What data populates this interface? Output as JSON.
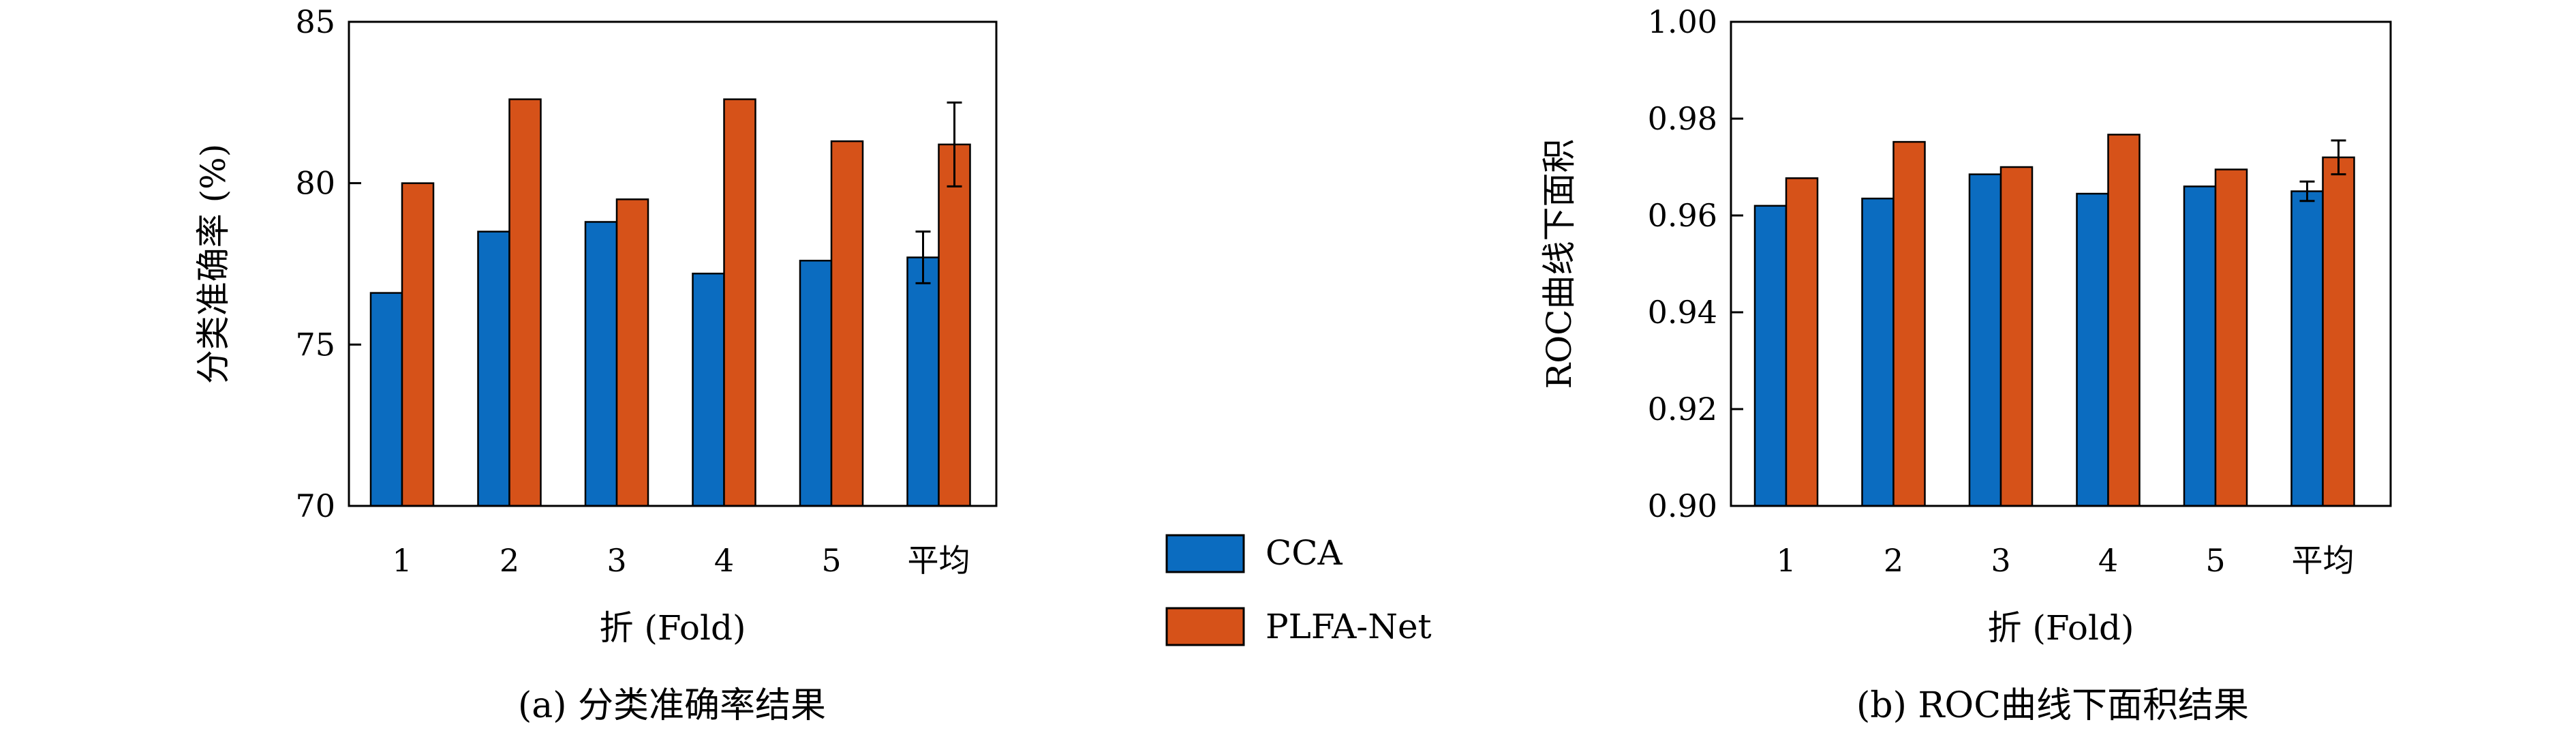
{
  "colors": {
    "cca": "#0b6cc0",
    "plfa": "#d65219",
    "axis": "#000000"
  },
  "legend": [
    {
      "name": "CCA",
      "color_key": "cca"
    },
    {
      "name": "PLFA-Net",
      "color_key": "plfa"
    }
  ],
  "chart_data": [
    {
      "type": "bar",
      "caption": "(a) 分类准确率结果",
      "xlabel": "折 (Fold)",
      "ylabel": "分类准确率 (%)",
      "categories": [
        "1",
        "2",
        "3",
        "4",
        "5",
        "平均"
      ],
      "ylim": [
        70,
        85
      ],
      "yticks": [
        "70",
        "75",
        "80",
        "85"
      ],
      "yticks_values": [
        70,
        75,
        80,
        85
      ],
      "series": [
        {
          "name": "CCA",
          "values": [
            76.6,
            78.5,
            78.8,
            77.2,
            77.6,
            77.7
          ],
          "error": [
            null,
            null,
            null,
            null,
            null,
            0.8
          ]
        },
        {
          "name": "PLFA-Net",
          "values": [
            80.0,
            82.6,
            79.5,
            82.6,
            81.3,
            81.2
          ],
          "error": [
            null,
            null,
            null,
            null,
            null,
            1.3
          ]
        }
      ],
      "grid": false
    },
    {
      "type": "bar",
      "caption": "(b) ROC曲线下面积结果",
      "xlabel": "折 (Fold)",
      "ylabel": "ROC曲线下面积",
      "categories": [
        "1",
        "2",
        "3",
        "4",
        "5",
        "平均"
      ],
      "ylim": [
        0.9,
        1.0
      ],
      "yticks": [
        "0.90",
        "0.92",
        "0.94",
        "0.96",
        "0.98",
        "1.00"
      ],
      "yticks_values": [
        0.9,
        0.92,
        0.94,
        0.96,
        0.98,
        1.0
      ],
      "series": [
        {
          "name": "CCA",
          "values": [
            0.962,
            0.9635,
            0.9685,
            0.9645,
            0.966,
            0.965
          ],
          "error": [
            null,
            null,
            null,
            null,
            null,
            0.002
          ]
        },
        {
          "name": "PLFA-Net",
          "values": [
            0.9677,
            0.9752,
            0.97,
            0.9767,
            0.9695,
            0.972
          ],
          "error": [
            null,
            null,
            null,
            null,
            null,
            0.0035
          ]
        }
      ],
      "grid": false
    }
  ]
}
